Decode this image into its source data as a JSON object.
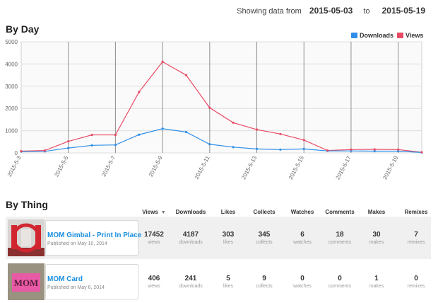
{
  "header": {
    "showing_label": "Showing data from",
    "start_date": "2015-05-03",
    "to_label": "to",
    "end_date": "2015-05-19"
  },
  "by_day": {
    "title": "By Day",
    "legend": [
      {
        "name": "Downloads",
        "color": "#2f8fe8"
      },
      {
        "name": "Views",
        "color": "#e84a64"
      }
    ]
  },
  "chart_data": {
    "type": "line",
    "x": [
      "2015-5-3",
      "2015-5-4",
      "2015-5-5",
      "2015-5-6",
      "2015-5-7",
      "2015-5-8",
      "2015-5-9",
      "2015-5-10",
      "2015-5-11",
      "2015-5-12",
      "2015-5-13",
      "2015-5-14",
      "2015-5-15",
      "2015-5-16",
      "2015-5-17",
      "2015-5-18",
      "2015-5-19",
      "2015-5-20"
    ],
    "xticks": [
      "2015-5-3",
      "2015-5-5",
      "2015-5-7",
      "2015-5-9",
      "2015-5-11",
      "2015-5-13",
      "2015-5-15",
      "2015-5-17",
      "2015-5-19"
    ],
    "yticks": [
      0,
      1000,
      2000,
      3000,
      4000,
      5000
    ],
    "ylim": [
      0,
      5000
    ],
    "grid": true,
    "legend_position": "top-right",
    "series": [
      {
        "name": "Downloads",
        "color": "#2f8fe8",
        "values": [
          60,
          70,
          220,
          340,
          360,
          820,
          1090,
          940,
          390,
          260,
          180,
          150,
          180,
          90,
          90,
          80,
          80,
          20
        ]
      },
      {
        "name": "Views",
        "color": "#e84a64",
        "values": [
          80,
          110,
          520,
          810,
          810,
          2740,
          4100,
          3500,
          2030,
          1360,
          1050,
          850,
          580,
          110,
          150,
          160,
          150,
          30
        ]
      }
    ]
  },
  "by_thing": {
    "title": "By Thing",
    "columns": [
      {
        "key": "views",
        "label": "Views",
        "unit": "views"
      },
      {
        "key": "downloads",
        "label": "Downloads",
        "unit": "downloads"
      },
      {
        "key": "likes",
        "label": "Likes",
        "unit": "likes"
      },
      {
        "key": "collects",
        "label": "Collects",
        "unit": "collects"
      },
      {
        "key": "watches",
        "label": "Watches",
        "unit": "watches"
      },
      {
        "key": "comments",
        "label": "Comments",
        "unit": "comments"
      },
      {
        "key": "makes",
        "label": "Makes",
        "unit": "makes"
      },
      {
        "key": "remixes",
        "label": "Remixes",
        "unit": "remixes"
      }
    ],
    "sort_icon": "sort-down-icon",
    "rows": [
      {
        "title": "MOM Gimbal - Print In Place",
        "published": "Published on May 10, 2014",
        "thumb_text": "",
        "stats": {
          "views": "17452",
          "downloads": "4187",
          "likes": "303",
          "collects": "345",
          "watches": "6",
          "comments": "18",
          "makes": "30",
          "remixes": "7"
        }
      },
      {
        "title": "MOM Card",
        "published": "Published on May 6, 2014",
        "thumb_text": "MOM",
        "stats": {
          "views": "406",
          "downloads": "241",
          "likes": "5",
          "collects": "9",
          "watches": "0",
          "comments": "0",
          "makes": "1",
          "remixes": "0"
        }
      }
    ]
  }
}
